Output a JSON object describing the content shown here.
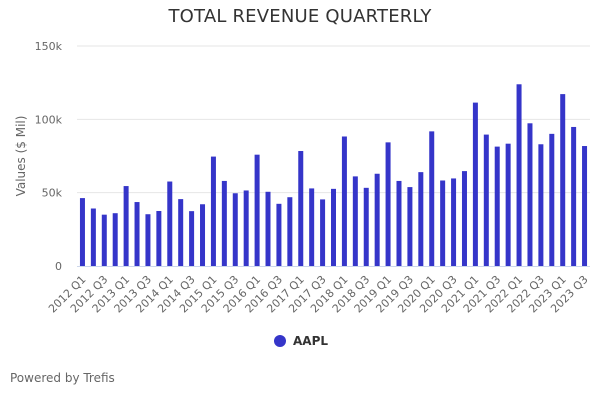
{
  "chart_data": {
    "type": "bar",
    "title": "TOTAL REVENUE QUARTERLY",
    "xlabel": "",
    "ylabel": "Values ($ Mil)",
    "ylim": [
      0,
      150000
    ],
    "yticks": [
      0,
      50000,
      100000,
      150000
    ],
    "ytick_labels": [
      "0",
      "50k",
      "100k",
      "150k"
    ],
    "grid": true,
    "legend_position": "bottom-center",
    "categories": [
      "2012 Q1",
      "2012 Q2",
      "2012 Q3",
      "2012 Q4",
      "2013 Q1",
      "2013 Q2",
      "2013 Q3",
      "2013 Q4",
      "2014 Q1",
      "2014 Q2",
      "2014 Q3",
      "2014 Q4",
      "2015 Q1",
      "2015 Q2",
      "2015 Q3",
      "2015 Q4",
      "2016 Q1",
      "2016 Q2",
      "2016 Q3",
      "2016 Q4",
      "2017 Q1",
      "2017 Q2",
      "2017 Q3",
      "2017 Q4",
      "2018 Q1",
      "2018 Q2",
      "2018 Q3",
      "2018 Q4",
      "2019 Q1",
      "2019 Q2",
      "2019 Q3",
      "2019 Q4",
      "2020 Q1",
      "2020 Q2",
      "2020 Q3",
      "2020 Q4",
      "2021 Q1",
      "2021 Q2",
      "2021 Q3",
      "2021 Q4",
      "2022 Q1",
      "2022 Q2",
      "2022 Q3",
      "2022 Q4",
      "2023 Q1",
      "2023 Q2",
      "2023 Q3"
    ],
    "shown_xtick_labels": [
      "2012 Q1",
      "2012 Q3",
      "2013 Q1",
      "2013 Q3",
      "2014 Q1",
      "2014 Q3",
      "2015 Q1",
      "2015 Q3",
      "2016 Q1",
      "2016 Q3",
      "2017 Q1",
      "2017 Q3",
      "2018 Q1",
      "2018 Q3",
      "2019 Q1",
      "2019 Q3",
      "2020 Q1",
      "2020 Q3",
      "2021 Q1",
      "2021 Q3",
      "2022 Q1",
      "2022 Q3",
      "2023 Q1",
      "2023 Q3"
    ],
    "series": [
      {
        "name": "AAPL",
        "color": "#3535c9",
        "values": [
          46300,
          39200,
          35000,
          36000,
          54500,
          43600,
          35300,
          37500,
          57600,
          45600,
          37400,
          42100,
          74600,
          58000,
          49600,
          51500,
          75900,
          50600,
          42400,
          46900,
          78400,
          52900,
          45400,
          52600,
          88300,
          61100,
          53300,
          62900,
          84300,
          58000,
          53800,
          64000,
          91800,
          58300,
          59700,
          64700,
          111400,
          89600,
          81400,
          83400,
          123900,
          97300,
          83000,
          90100,
          117200,
          94800,
          81800
        ]
      }
    ]
  },
  "legend": {
    "label": "AAPL",
    "color": "#3535c9"
  },
  "footer": {
    "credit": "Powered by Trefis"
  }
}
